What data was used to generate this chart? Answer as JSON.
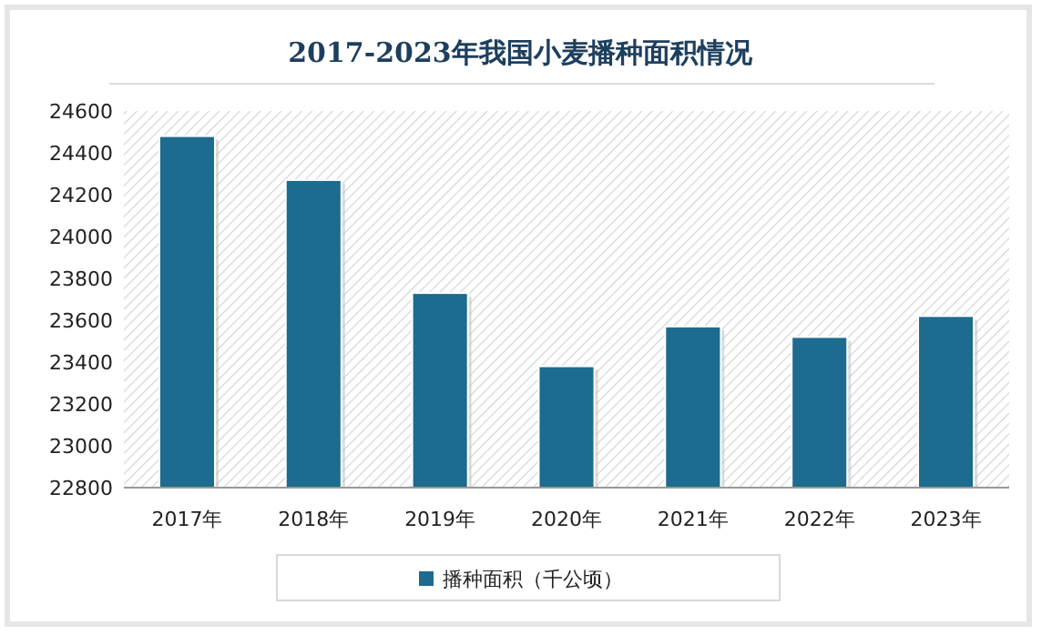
{
  "chart_data": {
    "type": "bar",
    "title": "2017-2023年我国小麦播种面积情况",
    "categories": [
      "2017年",
      "2018年",
      "2019年",
      "2020年",
      "2021年",
      "2022年",
      "2023年"
    ],
    "series": [
      {
        "name": "播种面积（千公顷）",
        "color": "#1d6b8e",
        "values": [
          24480,
          24270,
          23730,
          23380,
          23570,
          23520,
          23620
        ]
      }
    ],
    "ylim": [
      22800,
      24600
    ],
    "yticks": [
      22800,
      23000,
      23200,
      23400,
      23600,
      23800,
      24000,
      24200,
      24400,
      24600
    ],
    "legend": "bottom"
  }
}
